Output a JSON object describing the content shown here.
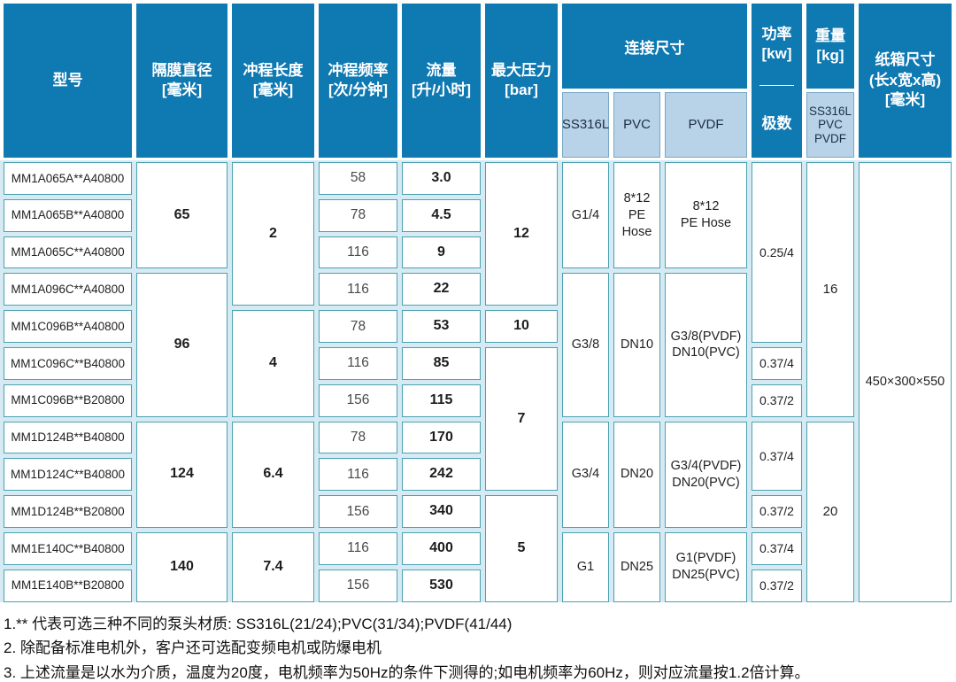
{
  "header": {
    "model": "型号",
    "diaphragm": "隔膜直径\n[毫米]",
    "stroke": "冲程长度\n[毫米]",
    "frequency": "冲程频率\n[次/分钟]",
    "flow": "流量\n[升/小时]",
    "pressure": "最大压力\n[bar]",
    "connection": "连接尺寸",
    "connection_sub": [
      "SS316L",
      "PVC",
      "PVDF"
    ],
    "power_top": "功率\n[kw]",
    "power_bottom": "极数",
    "weight_top": "重量\n[kg]",
    "weight_bottom": "SS316L\nPVC\nPVDF",
    "carton": "纸箱尺寸\n(长x宽x高)\n[毫米]"
  },
  "table": {
    "columns": [
      {
        "id": "model",
        "cells": [
          {
            "t": "MM1A065A**A40800",
            "s": 1
          },
          {
            "t": "MM1A065B**A40800",
            "s": 1
          },
          {
            "t": "MM1A065C**A40800",
            "s": 1
          },
          {
            "t": "MM1A096C**A40800",
            "s": 1
          },
          {
            "t": "MM1C096B**A40800",
            "s": 1
          },
          {
            "t": "MM1C096C**B40800",
            "s": 1
          },
          {
            "t": "MM1C096B**B20800",
            "s": 1
          },
          {
            "t": "MM1D124B**B40800",
            "s": 1
          },
          {
            "t": "MM1D124C**B40800",
            "s": 1
          },
          {
            "t": "MM1D124B**B20800",
            "s": 1
          },
          {
            "t": "MM1E140C**B40800",
            "s": 1
          },
          {
            "t": "MM1E140B**B20800",
            "s": 1
          }
        ]
      },
      {
        "id": "diaphragm",
        "cells": [
          {
            "t": "65",
            "s": 3
          },
          {
            "t": "96",
            "s": 4
          },
          {
            "t": "124",
            "s": 3
          },
          {
            "t": "140",
            "s": 2
          }
        ]
      },
      {
        "id": "stroke",
        "cells": [
          {
            "t": "2",
            "s": 4
          },
          {
            "t": "4",
            "s": 3
          },
          {
            "t": "6.4",
            "s": 3
          },
          {
            "t": "7.4",
            "s": 2
          }
        ]
      },
      {
        "id": "frequency",
        "cells": [
          {
            "t": "58",
            "s": 1
          },
          {
            "t": "78",
            "s": 1
          },
          {
            "t": "116",
            "s": 1
          },
          {
            "t": "116",
            "s": 1
          },
          {
            "t": "78",
            "s": 1
          },
          {
            "t": "116",
            "s": 1
          },
          {
            "t": "156",
            "s": 1
          },
          {
            "t": "78",
            "s": 1
          },
          {
            "t": "116",
            "s": 1
          },
          {
            "t": "156",
            "s": 1
          },
          {
            "t": "116",
            "s": 1
          },
          {
            "t": "156",
            "s": 1
          }
        ]
      },
      {
        "id": "flow",
        "cells": [
          {
            "t": "3.0",
            "s": 1
          },
          {
            "t": "4.5",
            "s": 1
          },
          {
            "t": "9",
            "s": 1
          },
          {
            "t": "22",
            "s": 1
          },
          {
            "t": "53",
            "s": 1
          },
          {
            "t": "85",
            "s": 1
          },
          {
            "t": "115",
            "s": 1
          },
          {
            "t": "170",
            "s": 1
          },
          {
            "t": "242",
            "s": 1
          },
          {
            "t": "340",
            "s": 1
          },
          {
            "t": "400",
            "s": 1
          },
          {
            "t": "530",
            "s": 1
          }
        ]
      },
      {
        "id": "pressure",
        "cells": [
          {
            "t": "12",
            "s": 4
          },
          {
            "t": "10",
            "s": 1
          },
          {
            "t": "7",
            "s": 4
          },
          {
            "t": "5",
            "s": 3
          }
        ]
      },
      {
        "id": "ss316l",
        "cells": [
          {
            "t": "G1/4",
            "s": 3
          },
          {
            "t": "G3/8",
            "s": 4
          },
          {
            "t": "G3/4",
            "s": 3
          },
          {
            "t": "G1",
            "s": 2
          }
        ]
      },
      {
        "id": "pvc",
        "cells": [
          {
            "t": "8*12\nPE\nHose",
            "s": 3
          },
          {
            "t": "DN10",
            "s": 4
          },
          {
            "t": "DN20",
            "s": 3
          },
          {
            "t": "DN25",
            "s": 2
          }
        ]
      },
      {
        "id": "pvdf",
        "cells": [
          {
            "t": "8*12\nPE Hose",
            "s": 3
          },
          {
            "t": "G3/8(PVDF)\nDN10(PVC)",
            "s": 4
          },
          {
            "t": "G3/4(PVDF)\nDN20(PVC)",
            "s": 3
          },
          {
            "t": "G1(PVDF)\nDN25(PVC)",
            "s": 2
          }
        ]
      },
      {
        "id": "power",
        "cells": [
          {
            "t": "0.25/4",
            "s": 5
          },
          {
            "t": "0.37/4",
            "s": 1
          },
          {
            "t": "0.37/2",
            "s": 1
          },
          {
            "t": "0.37/4",
            "s": 2
          },
          {
            "t": "0.37/2",
            "s": 1
          },
          {
            "t": "0.37/4",
            "s": 1
          },
          {
            "t": "0.37/2",
            "s": 1
          }
        ]
      },
      {
        "id": "weight",
        "cells": [
          {
            "t": "16",
            "s": 7
          },
          {
            "t": "20",
            "s": 5
          }
        ]
      },
      {
        "id": "carton",
        "cells": [
          {
            "t": "450×300×550",
            "s": 12
          }
        ]
      }
    ]
  },
  "notes": [
    "1.** 代表可选三种不同的泵头材质: SS316L(21/24);PVC(31/34);PVDF(41/44)",
    "2. 除配备标准电机外，客户还可选配变频电机或防爆电机",
    "3. 上述流量是以水为介质，温度为20度，电机频率为50Hz的条件下测得的;如电机频率为60Hz，则对应流量按1.2倍计算。"
  ],
  "colors": {
    "header_blue": "#0f79b2",
    "subheader_blue": "#b8d3e8",
    "cell_border_teal": "#4ba1b1",
    "body_gap_cyan": "#d5eaf2"
  }
}
